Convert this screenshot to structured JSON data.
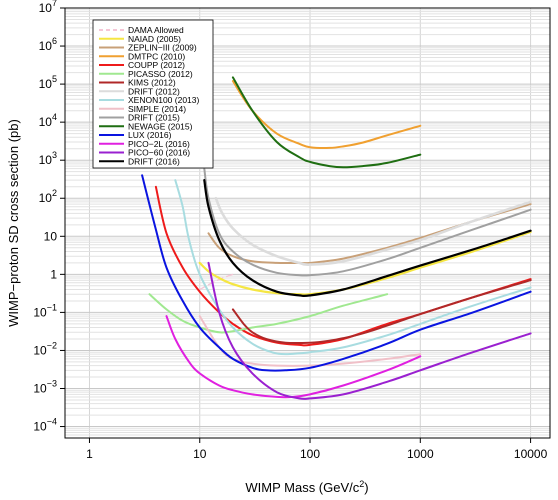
{
  "chart_data": {
    "type": "line",
    "xlabel": "WIMP Mass (GeV/c",
    "xlabel_sup": "2",
    "xlabel_end": ")",
    "ylabel": "WIMP−proton SD cross section (pb)",
    "x_scale": "log",
    "y_scale": "log",
    "xlim": [
      0.6,
      15000
    ],
    "ylim": [
      5e-05,
      10000000
    ],
    "x_ticks": [
      {
        "v": 1,
        "label": "1"
      },
      {
        "v": 10,
        "label": "10"
      },
      {
        "v": 100,
        "label": "100"
      },
      {
        "v": 1000,
        "label": "1000"
      },
      {
        "v": 10000,
        "label": "10000"
      }
    ],
    "y_ticks": [
      {
        "v": 0.0001,
        "base": "10",
        "exp": "−4",
        "label": ""
      },
      {
        "v": 0.001,
        "base": "10",
        "exp": "−3",
        "label": ""
      },
      {
        "v": 0.01,
        "base": "10",
        "exp": "−2",
        "label": ""
      },
      {
        "v": 0.1,
        "base": "10",
        "exp": "−1",
        "label": ""
      },
      {
        "v": 1,
        "base": "",
        "exp": "",
        "label": "1"
      },
      {
        "v": 10,
        "base": "",
        "exp": "",
        "label": "10"
      },
      {
        "v": 100,
        "base": "10",
        "exp": "2",
        "label": ""
      },
      {
        "v": 1000,
        "base": "10",
        "exp": "3",
        "label": ""
      },
      {
        "v": 10000,
        "base": "10",
        "exp": "4",
        "label": ""
      },
      {
        "v": 100000,
        "base": "10",
        "exp": "5",
        "label": ""
      },
      {
        "v": 1000000,
        "base": "10",
        "exp": "6",
        "label": ""
      },
      {
        "v": 10000000,
        "base": "10",
        "exp": "7",
        "label": ""
      }
    ],
    "grid": true,
    "legend_position": "top-left",
    "series": [
      {
        "name": "DAMA Allowed",
        "color": "#f5c6d6",
        "dash": true,
        "width": 1.4,
        "x": [
          10,
          13,
          16,
          20
        ],
        "y": [
          0.4,
          0.6,
          0.8,
          1.0
        ]
      },
      {
        "name": "NAIAD (2005)",
        "color": "#f5e642",
        "width": 2.2,
        "x": [
          10,
          12,
          15,
          20,
          30,
          50,
          80,
          100,
          200,
          500,
          1000,
          3000,
          10000
        ],
        "y": [
          2.0,
          1.2,
          0.8,
          0.55,
          0.4,
          0.32,
          0.3,
          0.3,
          0.4,
          0.8,
          1.5,
          4,
          13
        ]
      },
      {
        "name": "ZEPLIN−III (2009)",
        "color": "#c8a078",
        "width": 2,
        "x": [
          12,
          15,
          20,
          30,
          50,
          80,
          100,
          200,
          500,
          1000,
          3000,
          10000
        ],
        "y": [
          12,
          5,
          3,
          2.2,
          2,
          2,
          2,
          2.6,
          5,
          9,
          25,
          70
        ]
      },
      {
        "name": "DMTPC (2010)",
        "color": "#f0a030",
        "width": 2,
        "x": [
          20,
          30,
          50,
          80,
          100,
          150,
          200,
          300,
          500,
          1000
        ],
        "y": [
          120000,
          20000,
          5000,
          2700,
          2200,
          2100,
          2300,
          2900,
          4500,
          8000
        ]
      },
      {
        "name": "COUPP (2012)",
        "color": "#ee1b1b",
        "width": 2,
        "x": [
          4,
          5,
          7,
          10,
          15,
          20,
          30,
          50,
          80,
          100,
          200,
          500,
          1000,
          3000,
          10000
        ],
        "y": [
          200,
          12,
          1.5,
          0.35,
          0.1,
          0.05,
          0.025,
          0.016,
          0.014,
          0.014,
          0.02,
          0.05,
          0.09,
          0.25,
          0.75
        ]
      },
      {
        "name": "PICASSO (2012)",
        "color": "#a0e890",
        "width": 2,
        "x": [
          3.5,
          5,
          7,
          10,
          15,
          20,
          30,
          50,
          100,
          200,
          500
        ],
        "y": [
          0.3,
          0.12,
          0.06,
          0.04,
          0.03,
          0.032,
          0.04,
          0.05,
          0.08,
          0.15,
          0.3
        ]
      },
      {
        "name": "KIMS (2012)",
        "color": "#b02828",
        "width": 2,
        "x": [
          20,
          25,
          30,
          40,
          60,
          100,
          150,
          200,
          300,
          500,
          1000,
          3000,
          10000
        ],
        "y": [
          0.12,
          0.05,
          0.03,
          0.02,
          0.016,
          0.016,
          0.018,
          0.021,
          0.028,
          0.045,
          0.09,
          0.25,
          0.7
        ]
      },
      {
        "name": "DRIFT (2012)",
        "color": "#dcdcdc",
        "width": 2.6,
        "x": [
          14,
          16,
          20,
          30,
          50,
          80,
          100,
          200,
          500,
          1000,
          3000,
          10000
        ],
        "y": [
          100,
          40,
          16,
          6,
          3,
          2,
          1.8,
          2.2,
          4.5,
          8,
          25,
          80
        ]
      },
      {
        "name": "XENON100 (2013)",
        "color": "#a8dce0",
        "width": 2,
        "x": [
          6,
          7,
          8,
          10,
          15,
          20,
          30,
          45,
          60,
          100,
          200,
          500,
          1000,
          3000,
          10000
        ],
        "y": [
          300,
          60,
          8,
          1,
          0.12,
          0.04,
          0.015,
          0.009,
          0.008,
          0.009,
          0.012,
          0.025,
          0.05,
          0.15,
          0.45
        ]
      },
      {
        "name": "SIMPLE (2014)",
        "color": "#f0c0c8",
        "width": 2,
        "x": [
          10,
          15,
          20,
          30,
          50,
          100,
          200,
          500,
          1000
        ],
        "y": [
          0.08,
          0.012,
          0.006,
          0.0045,
          0.004,
          0.004,
          0.0045,
          0.006,
          0.008
        ]
      },
      {
        "name": "DRIFT (2015)",
        "color": "#a0a0a0",
        "width": 2,
        "x": [
          11,
          12,
          15,
          20,
          30,
          50,
          80,
          100,
          200,
          500,
          1000,
          3000,
          10000
        ],
        "y": [
          600,
          100,
          12,
          4,
          1.8,
          1.1,
          0.95,
          0.95,
          1.2,
          2.5,
          5,
          15,
          50
        ]
      },
      {
        "name": "NEWAGE (2015)",
        "color": "#1f6e12",
        "width": 2,
        "x": [
          20,
          30,
          50,
          80,
          100,
          150,
          200,
          300,
          500,
          1000
        ],
        "y": [
          150000,
          20000,
          3000,
          1200,
          900,
          700,
          650,
          700,
          850,
          1400
        ]
      },
      {
        "name": "LUX (2016)",
        "color": "#0a14e0",
        "width": 2,
        "x": [
          3,
          4,
          5,
          7,
          10,
          15,
          20,
          30,
          40,
          60,
          100,
          200,
          500,
          1000,
          3000,
          10000
        ],
        "y": [
          400,
          15,
          1.5,
          0.2,
          0.04,
          0.012,
          0.006,
          0.0035,
          0.003,
          0.003,
          0.0035,
          0.006,
          0.015,
          0.035,
          0.1,
          0.35
        ]
      },
      {
        "name": "PICO−2L (2016)",
        "color": "#e020e0",
        "width": 2,
        "x": [
          5,
          6,
          8,
          10,
          15,
          20,
          30,
          50,
          70,
          100,
          200,
          500,
          1000
        ],
        "y": [
          0.08,
          0.02,
          0.005,
          0.0025,
          0.0012,
          0.0009,
          0.0007,
          0.0006,
          0.0006,
          0.0007,
          0.0012,
          0.003,
          0.007
        ]
      },
      {
        "name": "PICO−60 (2016)",
        "color": "#9a20d0",
        "width": 2,
        "x": [
          12,
          15,
          20,
          30,
          50,
          80,
          100,
          200,
          500,
          1000,
          3000,
          10000
        ],
        "y": [
          2,
          0.1,
          0.012,
          0.0025,
          0.0008,
          0.00055,
          0.00055,
          0.0007,
          0.0015,
          0.003,
          0.009,
          0.028
        ]
      },
      {
        "name": "DRIFT (2016)",
        "color": "#000000",
        "width": 2.2,
        "x": [
          11,
          12,
          15,
          20,
          30,
          50,
          80,
          100,
          200,
          500,
          1000,
          3000,
          10000
        ],
        "y": [
          300,
          60,
          8,
          2,
          0.7,
          0.35,
          0.28,
          0.28,
          0.4,
          0.9,
          1.7,
          4.5,
          14
        ]
      }
    ]
  }
}
